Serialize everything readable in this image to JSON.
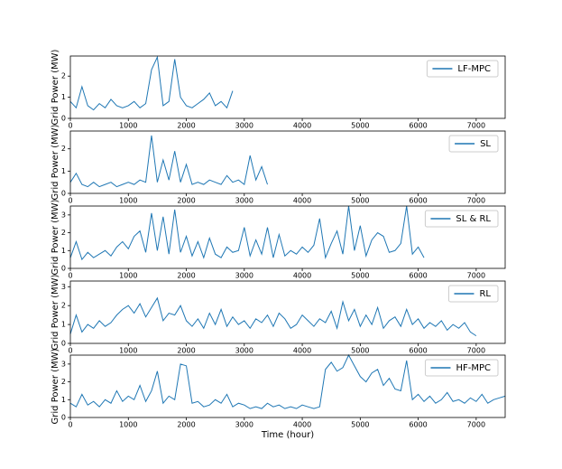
{
  "chart_data": [
    {
      "type": "line",
      "series": [
        {
          "name": "LF-MPC",
          "color": "#1f77b4",
          "x": [
            0,
            100,
            200,
            300,
            400,
            500,
            600,
            700,
            800,
            900,
            1000,
            1100,
            1200,
            1300,
            1400,
            1500,
            1600,
            1700,
            1800,
            1900,
            2000,
            2100,
            2200,
            2300,
            2400,
            2500,
            2600,
            2700,
            2800
          ],
          "values": [
            0.8,
            0.5,
            1.5,
            0.6,
            0.4,
            0.7,
            0.5,
            0.9,
            0.6,
            0.5,
            0.6,
            0.8,
            0.5,
            0.7,
            2.3,
            2.9,
            0.6,
            0.8,
            2.8,
            1.0,
            0.6,
            0.5,
            0.7,
            0.9,
            1.2,
            0.6,
            0.8,
            0.5,
            1.3
          ]
        }
      ],
      "ylabel": "Grid Power (MW)",
      "xlim": [
        0,
        7500
      ],
      "xticks": [
        0,
        1000,
        2000,
        3000,
        4000,
        5000,
        6000,
        7000
      ],
      "ylim": [
        0,
        2.95
      ],
      "yticks": [
        0,
        1,
        2
      ],
      "legend": "upper right"
    },
    {
      "type": "line",
      "series": [
        {
          "name": "SL",
          "color": "#1f77b4",
          "x": [
            0,
            100,
            200,
            300,
            400,
            500,
            600,
            700,
            800,
            900,
            1000,
            1100,
            1200,
            1300,
            1400,
            1500,
            1600,
            1700,
            1800,
            1900,
            2000,
            2100,
            2200,
            2300,
            2400,
            2500,
            2600,
            2700,
            2800,
            2900,
            3000,
            3100,
            3200,
            3300,
            3400
          ],
          "values": [
            0.5,
            0.9,
            0.4,
            0.3,
            0.5,
            0.3,
            0.4,
            0.5,
            0.3,
            0.4,
            0.5,
            0.4,
            0.6,
            0.5,
            2.6,
            0.5,
            1.5,
            0.6,
            1.9,
            0.5,
            1.3,
            0.4,
            0.5,
            0.4,
            0.6,
            0.5,
            0.4,
            0.8,
            0.5,
            0.6,
            0.4,
            1.7,
            0.6,
            1.2,
            0.4
          ]
        }
      ],
      "ylabel": "Grid Power (MW)",
      "xlim": [
        0,
        7500
      ],
      "xticks": [
        0,
        1000,
        2000,
        3000,
        4000,
        5000,
        6000,
        7000
      ],
      "ylim": [
        0,
        2.8
      ],
      "yticks": [
        0,
        1,
        2
      ],
      "legend": "upper right"
    },
    {
      "type": "line",
      "series": [
        {
          "name": "SL & RL",
          "color": "#1f77b4",
          "x": [
            0,
            100,
            200,
            300,
            400,
            500,
            600,
            700,
            800,
            900,
            1000,
            1100,
            1200,
            1300,
            1400,
            1500,
            1600,
            1700,
            1800,
            1900,
            2000,
            2100,
            2200,
            2300,
            2400,
            2500,
            2600,
            2700,
            2800,
            2900,
            3000,
            3100,
            3200,
            3300,
            3400,
            3500,
            3600,
            3700,
            3800,
            3900,
            4000,
            4100,
            4200,
            4300,
            4400,
            4500,
            4600,
            4700,
            4800,
            4900,
            5000,
            5100,
            5200,
            5300,
            5400,
            5500,
            5600,
            5700,
            5800,
            5900,
            6000,
            6100
          ],
          "values": [
            0.6,
            1.5,
            0.5,
            0.9,
            0.6,
            0.8,
            1.0,
            0.7,
            1.2,
            1.5,
            1.1,
            1.8,
            2.1,
            0.9,
            3.1,
            1.0,
            2.9,
            0.8,
            3.3,
            0.9,
            1.8,
            0.7,
            1.5,
            0.6,
            1.7,
            0.8,
            0.6,
            1.2,
            0.9,
            1.0,
            2.3,
            0.7,
            1.6,
            0.8,
            2.3,
            0.6,
            1.9,
            0.7,
            1.0,
            0.8,
            1.2,
            0.9,
            1.3,
            2.8,
            0.6,
            1.4,
            2.1,
            0.8,
            3.5,
            1.0,
            2.4,
            0.7,
            1.6,
            2.0,
            1.8,
            0.9,
            1.0,
            1.4,
            3.5,
            0.8,
            1.2,
            0.6
          ]
        }
      ],
      "ylabel": "Grid Power (MW)",
      "xlim": [
        0,
        7500
      ],
      "xticks": [
        0,
        1000,
        2000,
        3000,
        4000,
        5000,
        6000,
        7000
      ],
      "ylim": [
        0,
        3.5
      ],
      "yticks": [
        0,
        1,
        2,
        3
      ],
      "legend": "upper right"
    },
    {
      "type": "line",
      "series": [
        {
          "name": "RL",
          "color": "#1f77b4",
          "x": [
            0,
            100,
            200,
            300,
            400,
            500,
            600,
            700,
            800,
            900,
            1000,
            1100,
            1200,
            1300,
            1400,
            1500,
            1600,
            1700,
            1800,
            1900,
            2000,
            2100,
            2200,
            2300,
            2400,
            2500,
            2600,
            2700,
            2800,
            2900,
            3000,
            3100,
            3200,
            3300,
            3400,
            3500,
            3600,
            3700,
            3800,
            3900,
            4000,
            4100,
            4200,
            4300,
            4400,
            4500,
            4600,
            4700,
            4800,
            4900,
            5000,
            5100,
            5200,
            5300,
            5400,
            5500,
            5600,
            5700,
            5800,
            5900,
            6000,
            6100,
            6200,
            6300,
            6400,
            6500,
            6600,
            6700,
            6800,
            6900,
            7000
          ],
          "values": [
            0.5,
            1.5,
            0.6,
            1.0,
            0.8,
            1.2,
            0.9,
            1.1,
            1.5,
            1.8,
            2.0,
            1.6,
            2.1,
            1.4,
            1.9,
            2.4,
            1.2,
            1.6,
            1.5,
            2.0,
            1.2,
            0.9,
            1.3,
            0.8,
            1.6,
            1.0,
            1.8,
            0.9,
            1.4,
            1.0,
            1.2,
            0.8,
            1.3,
            1.1,
            1.5,
            0.9,
            1.6,
            1.3,
            0.8,
            1.0,
            1.5,
            1.2,
            0.9,
            1.3,
            1.1,
            1.7,
            0.8,
            2.2,
            1.2,
            1.8,
            0.9,
            1.5,
            1.0,
            1.9,
            0.8,
            1.2,
            1.4,
            0.9,
            1.8,
            1.0,
            1.3,
            0.8,
            1.1,
            0.9,
            1.2,
            0.7,
            1.0,
            0.8,
            1.1,
            0.6,
            0.4
          ]
        }
      ],
      "ylabel": "Grid Power (MW)",
      "xlim": [
        0,
        7500
      ],
      "xticks": [
        0,
        1000,
        2000,
        3000,
        4000,
        5000,
        6000,
        7000
      ],
      "ylim": [
        0,
        3.3
      ],
      "yticks": [
        0,
        1,
        2,
        3
      ],
      "legend": "upper right"
    },
    {
      "type": "line",
      "series": [
        {
          "name": "HF-MPC",
          "color": "#1f77b4",
          "x": [
            0,
            100,
            200,
            300,
            400,
            500,
            600,
            700,
            800,
            900,
            1000,
            1100,
            1200,
            1300,
            1400,
            1500,
            1600,
            1700,
            1800,
            1900,
            2000,
            2100,
            2200,
            2300,
            2400,
            2500,
            2600,
            2700,
            2800,
            2900,
            3000,
            3100,
            3200,
            3300,
            3400,
            3500,
            3600,
            3700,
            3800,
            3900,
            4000,
            4100,
            4200,
            4300,
            4400,
            4500,
            4600,
            4700,
            4800,
            4900,
            5000,
            5100,
            5200,
            5300,
            5400,
            5500,
            5600,
            5700,
            5800,
            5900,
            6000,
            6100,
            6200,
            6300,
            6400,
            6500,
            6600,
            6700,
            6800,
            6900,
            7000,
            7100,
            7200,
            7300,
            7400,
            7500
          ],
          "values": [
            0.8,
            0.6,
            1.3,
            0.7,
            0.9,
            0.6,
            1.0,
            0.8,
            1.5,
            0.9,
            1.2,
            1.0,
            1.8,
            0.9,
            1.5,
            2.6,
            0.8,
            1.2,
            1.0,
            3.0,
            2.9,
            0.8,
            0.9,
            0.6,
            0.7,
            1.0,
            0.8,
            1.3,
            0.6,
            0.8,
            0.7,
            0.5,
            0.6,
            0.5,
            0.8,
            0.6,
            0.7,
            0.5,
            0.6,
            0.5,
            0.7,
            0.6,
            0.5,
            0.6,
            2.7,
            3.1,
            2.6,
            2.8,
            3.5,
            2.9,
            2.3,
            2.0,
            2.5,
            2.7,
            1.8,
            2.2,
            1.6,
            1.5,
            3.2,
            1.0,
            1.3,
            0.9,
            1.2,
            0.8,
            1.0,
            1.4,
            0.9,
            1.0,
            0.8,
            1.1,
            0.9,
            1.3,
            0.8,
            1.0,
            1.1,
            1.2
          ]
        }
      ],
      "ylabel": "Grid Power (MW)",
      "xlabel": "Time (hour)",
      "xlim": [
        0,
        7500
      ],
      "xticks": [
        0,
        1000,
        2000,
        3000,
        4000,
        5000,
        6000,
        7000
      ],
      "ylim": [
        0,
        3.5
      ],
      "yticks": [
        0,
        1,
        2,
        3
      ],
      "legend": "upper right"
    }
  ]
}
